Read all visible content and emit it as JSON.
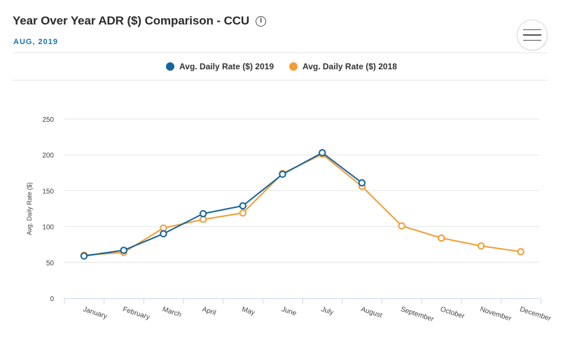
{
  "header": {
    "title": "Year Over Year ADR ($) Comparison - CCU",
    "subtitle": "AUG, 2019",
    "info_icon": "info-icon",
    "menu_icon": "hamburger-menu-icon"
  },
  "colors": {
    "series_2019": "#1565a0",
    "series_2018": "#f29d35",
    "subtitle": "#1a73a8"
  },
  "chart_data": {
    "type": "line",
    "title": "Year Over Year ADR ($) Comparison - CCU",
    "xlabel": "",
    "ylabel": "Avg. Daily Rate ($)",
    "ylim": [
      0,
      250
    ],
    "yticks": [
      0,
      50,
      100,
      150,
      200,
      250
    ],
    "categories": [
      "January",
      "February",
      "March",
      "April",
      "May",
      "June",
      "July",
      "August",
      "September",
      "October",
      "November",
      "December"
    ],
    "legend_position": "top-center",
    "series": [
      {
        "name": "Avg. Daily Rate ($) 2019",
        "color": "#1565a0",
        "values": [
          59,
          67,
          90,
          118,
          129,
          173,
          203,
          161,
          null,
          null,
          null,
          null
        ]
      },
      {
        "name": "Avg. Daily Rate ($) 2018",
        "color": "#f29d35",
        "values": [
          60,
          64,
          98,
          110,
          119,
          174,
          201,
          156,
          101,
          84,
          73,
          65
        ]
      }
    ]
  }
}
